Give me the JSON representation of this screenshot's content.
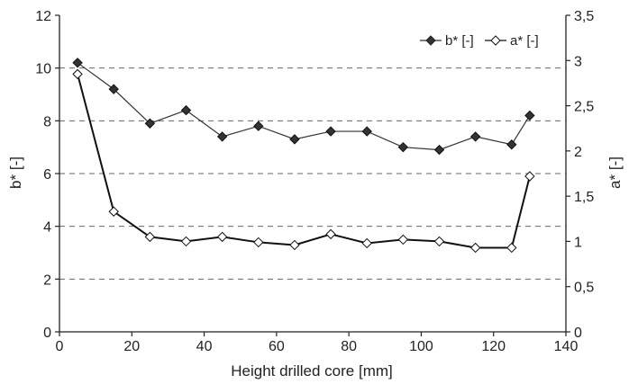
{
  "chart_data": {
    "type": "line",
    "title": "",
    "xlabel": "Height drilled core [mm]",
    "ylabel": "b* [-]",
    "y2label": "a* [-]",
    "xlim": [
      0,
      140
    ],
    "ylim": [
      0,
      12
    ],
    "y2lim": [
      0,
      3.5
    ],
    "x_ticks": [
      0,
      20,
      40,
      60,
      80,
      100,
      120,
      140
    ],
    "y_ticks": [
      0,
      2,
      4,
      6,
      8,
      10,
      12
    ],
    "y2_ticks": [
      "0",
      "0,5",
      "1",
      "1,5",
      "2",
      "2,5",
      "3",
      "3,5"
    ],
    "y2_tick_values": [
      0,
      0.5,
      1,
      1.5,
      2,
      2.5,
      3,
      3.5
    ],
    "grid": "dashed horizontal lines at b* 2, 4, 6, 8, 10",
    "legend_position": "top-right",
    "series": [
      {
        "name": "b* [-]",
        "axis": "left",
        "marker": "filled-diamond",
        "color": "#333333",
        "x": [
          5,
          15,
          25,
          35,
          45,
          55,
          65,
          75,
          85,
          95,
          105,
          115,
          125,
          130
        ],
        "values": [
          10.2,
          9.2,
          7.9,
          8.4,
          7.4,
          7.8,
          7.3,
          7.6,
          7.6,
          7.0,
          6.9,
          7.4,
          7.1,
          8.2
        ]
      },
      {
        "name": "a* [-]",
        "axis": "right",
        "marker": "open-diamond",
        "color": "#111111",
        "x": [
          5,
          15,
          25,
          35,
          45,
          55,
          65,
          75,
          85,
          95,
          105,
          115,
          125,
          130
        ],
        "values": [
          2.85,
          1.33,
          1.05,
          1.0,
          1.05,
          0.99,
          0.96,
          1.08,
          0.98,
          1.02,
          1.0,
          0.93,
          0.93,
          1.72
        ]
      }
    ]
  }
}
